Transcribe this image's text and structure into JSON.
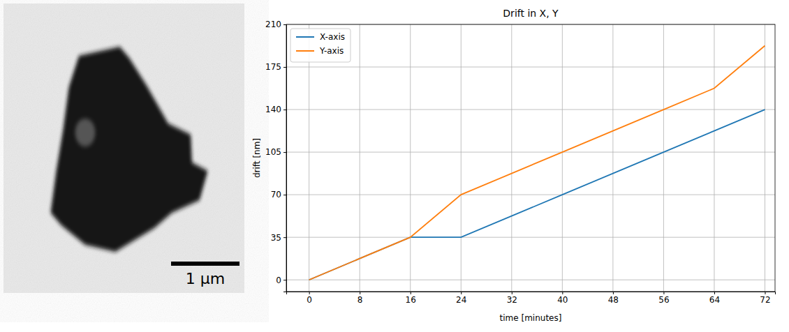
{
  "micrograph": {
    "scale_bar": "1 µm"
  },
  "chart_data": {
    "type": "line",
    "title": "Drift in X, Y",
    "x_label": "time [minutes]",
    "y_label": "drift [nm]",
    "x": [
      0,
      8,
      16,
      24,
      32,
      40,
      48,
      56,
      64,
      72
    ],
    "series": [
      {
        "name": "X-axis",
        "color": "#1f77b4",
        "values": [
          0,
          17.5,
          35,
          35,
          52.5,
          70,
          87.5,
          105,
          122.5,
          140
        ]
      },
      {
        "name": "Y-axis",
        "color": "#ff7f0e",
        "values": [
          0,
          17.5,
          35,
          70,
          87.5,
          105,
          122.5,
          140,
          157.5,
          192.5
        ]
      }
    ],
    "xlim": [
      -3.6,
      73.6
    ],
    "ylim": [
      -9.625,
      210
    ],
    "xticks": [
      0,
      8,
      16,
      24,
      32,
      40,
      48,
      56,
      64,
      72
    ],
    "yticks": [
      0,
      35,
      70,
      105,
      140,
      175,
      210
    ],
    "grid": true,
    "legend": "upper left"
  }
}
